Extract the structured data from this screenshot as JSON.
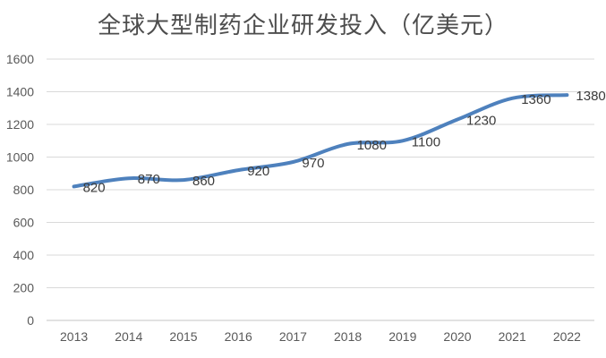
{
  "chart_data": {
    "type": "line",
    "title": "全球大型制药企业研发投入（亿美元）",
    "categories": [
      "2013",
      "2014",
      "2015",
      "2016",
      "2017",
      "2018",
      "2019",
      "2020",
      "2021",
      "2022"
    ],
    "values": [
      820,
      870,
      860,
      920,
      970,
      1080,
      1100,
      1230,
      1360,
      1380
    ],
    "data_labels": [
      "820",
      "870",
      "860",
      "920",
      "970",
      "1080",
      "1100",
      "1230",
      "1360",
      "1380"
    ],
    "data_label_position": "right",
    "xlabel": "",
    "ylabel": "",
    "ylim": [
      0,
      1600
    ],
    "yticks": [
      0,
      200,
      400,
      600,
      800,
      1000,
      1200,
      1400,
      1600
    ],
    "grid": "horizontal",
    "legend": "none",
    "smooth_line": true,
    "colors": {
      "line": "#4e81bd",
      "gridline": "#d9d9d9",
      "axis_line": "#c6c6c6",
      "axis_text": "#595959",
      "data_label_text": "#3b3b3b",
      "title_text": "#4d4d4d",
      "background": "#ffffff"
    }
  }
}
